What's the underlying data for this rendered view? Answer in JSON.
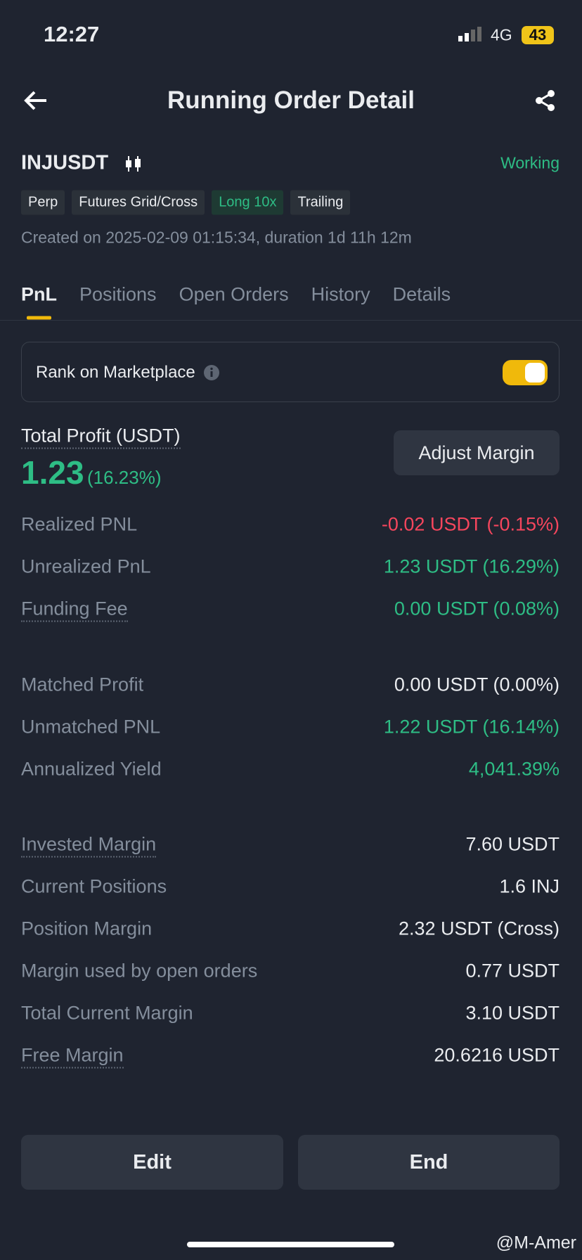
{
  "status": {
    "time": "12:27",
    "network": "4G",
    "battery": "43"
  },
  "header": {
    "title": "Running Order Detail"
  },
  "instrument": {
    "symbol": "INJUSDT",
    "state": "Working"
  },
  "tags": [
    {
      "text": "Perp",
      "color": "#eaecef"
    },
    {
      "text": "Futures Grid/Cross",
      "color": "#eaecef"
    },
    {
      "text": "Long 10x",
      "color": "#2ebd85"
    },
    {
      "text": "Trailing",
      "color": "#eaecef"
    }
  ],
  "created": "Created on 2025-02-09 01:15:34, duration 1d 11h 12m",
  "tabs": [
    "PnL",
    "Positions",
    "Open Orders",
    "History",
    "Details"
  ],
  "rank": {
    "label": "Rank on Marketplace"
  },
  "profit": {
    "label": "Total Profit (USDT)",
    "value": "1.23",
    "percent": "(16.23%)",
    "button": "Adjust Margin"
  },
  "groups": [
    [
      {
        "label": "Realized PNL",
        "value": "-0.02 USDT (-0.15%)",
        "color": "#f6465d"
      },
      {
        "label": "Unrealized PnL",
        "value": "1.23 USDT (16.29%)",
        "color": "#2ebd85"
      },
      {
        "label": "Funding Fee",
        "value": "0.00 USDT (0.08%)",
        "color": "#2ebd85",
        "underline": true
      }
    ],
    [
      {
        "label": "Matched Profit",
        "value": "0.00 USDT (0.00%)",
        "color": "#eaecef"
      },
      {
        "label": "Unmatched PNL",
        "value": "1.22 USDT (16.14%)",
        "color": "#2ebd85"
      },
      {
        "label": "Annualized Yield",
        "value": "4,041.39%",
        "color": "#2ebd85"
      }
    ],
    [
      {
        "label": "Invested Margin",
        "value": "7.60 USDT",
        "color": "#eaecef",
        "underline": true
      },
      {
        "label": "Current Positions",
        "value": "1.6 INJ",
        "color": "#eaecef"
      },
      {
        "label": "Position Margin",
        "value": "2.32 USDT (Cross)",
        "color": "#eaecef"
      },
      {
        "label": "Margin used by open orders",
        "value": "0.77 USDT",
        "color": "#eaecef"
      },
      {
        "label": "Total Current Margin",
        "value": "3.10 USDT",
        "color": "#eaecef"
      },
      {
        "label": "Free Margin",
        "value": "20.6216 USDT",
        "color": "#eaecef",
        "underline": true
      }
    ]
  ],
  "actions": [
    "Edit",
    "End"
  ],
  "watermark": "@M-Amer"
}
